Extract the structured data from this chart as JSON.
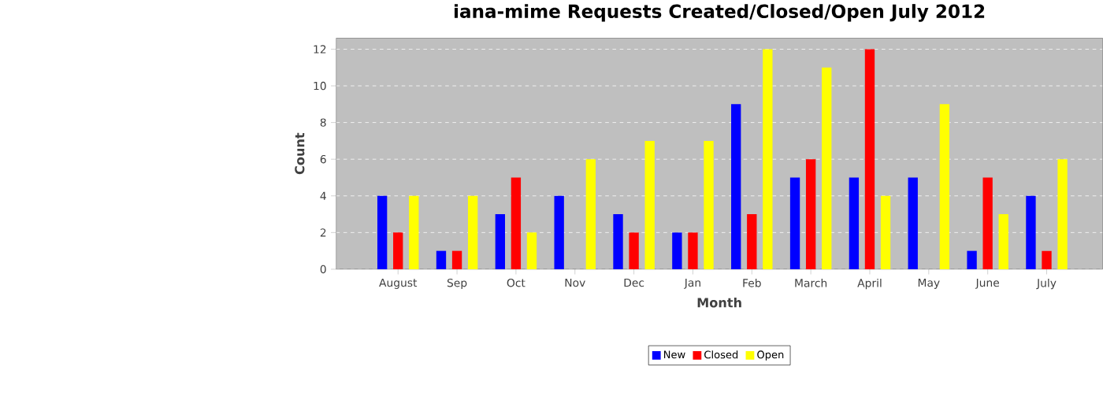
{
  "chart_data": {
    "type": "bar",
    "title": "iana-mime Requests Created/Closed/Open July 2012",
    "xlabel": "Month",
    "ylabel": "Count",
    "categories": [
      "August",
      "Sep",
      "Oct",
      "Nov",
      "Dec",
      "Jan",
      "Feb",
      "March",
      "April",
      "May",
      "June",
      "July"
    ],
    "series": [
      {
        "name": "New",
        "color": "#0000ff",
        "values": [
          4,
          1,
          3,
          4,
          3,
          2,
          9,
          5,
          5,
          5,
          1,
          4
        ]
      },
      {
        "name": "Closed",
        "color": "#ff0000",
        "values": [
          2,
          1,
          5,
          0,
          2,
          2,
          3,
          6,
          12,
          0,
          5,
          1
        ]
      },
      {
        "name": "Open",
        "color": "#ffff00",
        "values": [
          4,
          4,
          2,
          6,
          7,
          7,
          12,
          11,
          4,
          9,
          3,
          6
        ]
      }
    ],
    "ylim": [
      0,
      12.6
    ],
    "yticks": [
      0,
      2,
      4,
      6,
      8,
      10,
      12
    ],
    "grid": "y",
    "legend": "bottom"
  }
}
